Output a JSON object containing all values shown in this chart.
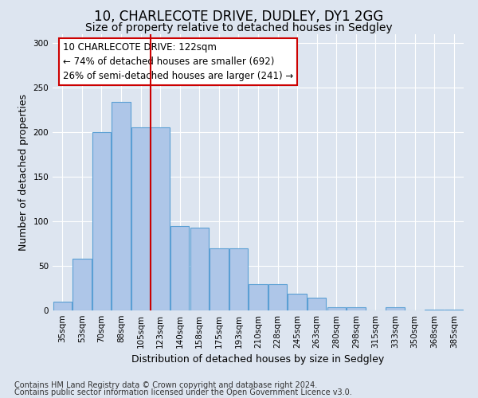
{
  "title1": "10, CHARLECOTE DRIVE, DUDLEY, DY1 2GG",
  "title2": "Size of property relative to detached houses in Sedgley",
  "xlabel": "Distribution of detached houses by size in Sedgley",
  "ylabel": "Number of detached properties",
  "categories": [
    "35sqm",
    "53sqm",
    "70sqm",
    "88sqm",
    "105sqm",
    "123sqm",
    "140sqm",
    "158sqm",
    "175sqm",
    "193sqm",
    "210sqm",
    "228sqm",
    "245sqm",
    "263sqm",
    "280sqm",
    "298sqm",
    "315sqm",
    "333sqm",
    "350sqm",
    "368sqm",
    "385sqm"
  ],
  "values": [
    10,
    58,
    200,
    234,
    205,
    205,
    95,
    93,
    70,
    70,
    29,
    29,
    19,
    14,
    4,
    4,
    0,
    4,
    0,
    1,
    1
  ],
  "bar_color": "#aec6e8",
  "bar_edge_color": "#5a9fd4",
  "highlight_index": 5,
  "highlight_line_color": "#cc0000",
  "annotation_text": "10 CHARLECOTE DRIVE: 122sqm\n← 74% of detached houses are smaller (692)\n26% of semi-detached houses are larger (241) →",
  "annotation_box_color": "#ffffff",
  "annotation_box_edge_color": "#cc0000",
  "ylim": [
    0,
    310
  ],
  "yticks": [
    0,
    50,
    100,
    150,
    200,
    250,
    300
  ],
  "background_color": "#dde5f0",
  "plot_bg_color": "#dde5f0",
  "footer1": "Contains HM Land Registry data © Crown copyright and database right 2024.",
  "footer2": "Contains public sector information licensed under the Open Government Licence v3.0.",
  "title1_fontsize": 12,
  "title2_fontsize": 10,
  "xlabel_fontsize": 9,
  "ylabel_fontsize": 9,
  "tick_fontsize": 7.5,
  "footer_fontsize": 7
}
